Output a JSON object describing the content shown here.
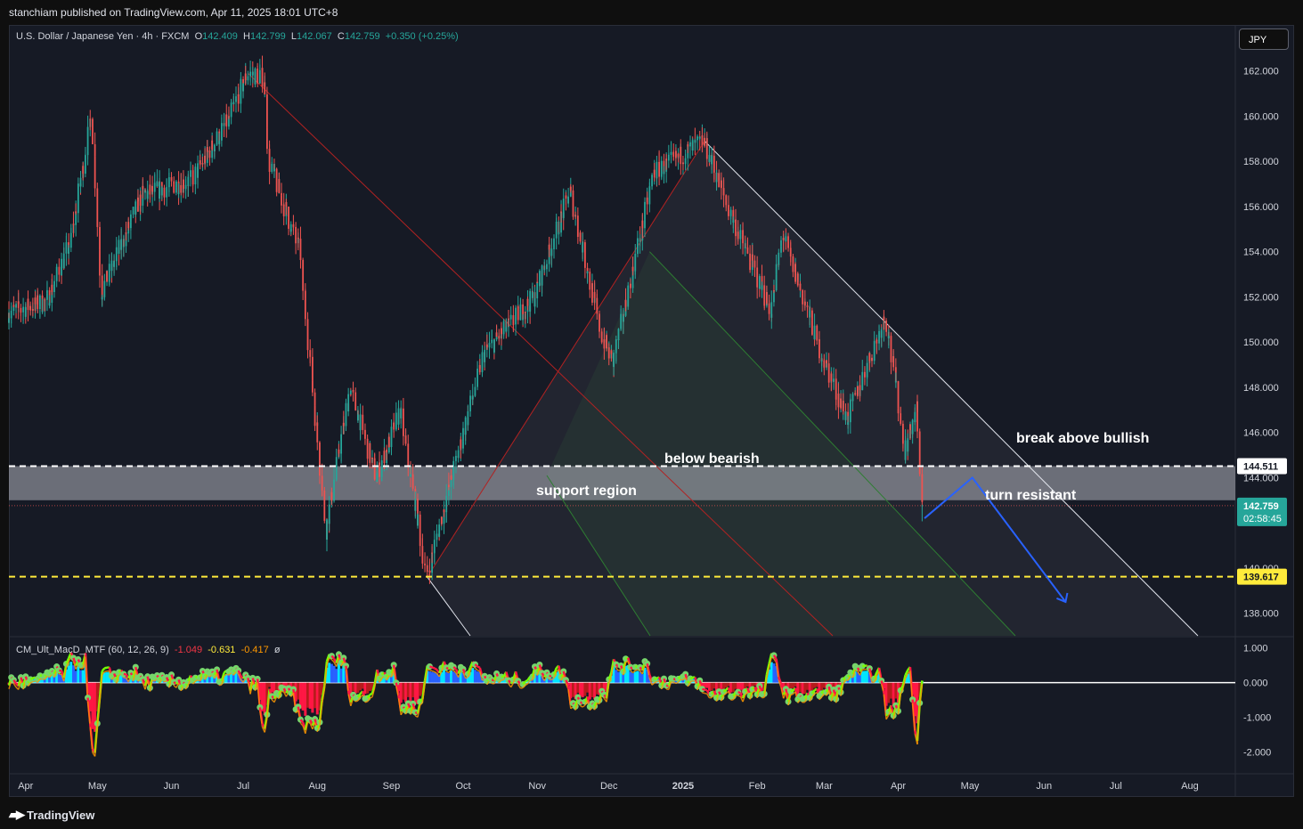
{
  "publisher": "stanchiam published on TradingView.com, Apr 11, 2025 18:01 UTC+8",
  "legend": {
    "symbol": "U.S. Dollar / Japanese Yen · 4h · FXCM",
    "o_label": "O",
    "o": "142.409",
    "h_label": "H",
    "h": "142.799",
    "l_label": "L",
    "l": "142.067",
    "c_label": "C",
    "c": "142.759",
    "change": "+0.350 (+0.25%)"
  },
  "currency_button": "JPY",
  "indicator": {
    "name": "CM_Ult_MacD_MTF (60, 12, 26, 9)",
    "v1": "-1.049",
    "v2": "-0.631",
    "v3": "-0.417",
    "v4": "ø"
  },
  "price_axis": {
    "ticks": [
      "162.000",
      "160.000",
      "158.000",
      "156.000",
      "154.000",
      "152.000",
      "150.000",
      "148.000",
      "146.000",
      "144.000",
      "140.000",
      "138.000"
    ],
    "tags": {
      "resistance": "144.511",
      "last": "142.759",
      "countdown": "02:58:45",
      "support": "139.617"
    }
  },
  "indicator_axis": {
    "ticks": [
      "1.000",
      "0.000",
      "-1.000",
      "-2.000"
    ]
  },
  "time_axis": {
    "labels": [
      "Apr",
      "May",
      "Jun",
      "Jul",
      "Aug",
      "Sep",
      "Oct",
      "Nov",
      "Dec",
      "2025",
      "Feb",
      "Mar",
      "Apr",
      "May",
      "Jun",
      "Jul",
      "Aug"
    ]
  },
  "annotations": {
    "break_above": "break above bullish",
    "below_bearish": "below bearish",
    "support_region": "support region",
    "turn_resistant": "turn resistant"
  },
  "branding": "TradingView",
  "colors": {
    "background": "#161a25",
    "up": "#26a69a",
    "down": "#ef5350",
    "support_line": "#ffeb3b",
    "resistance_line": "#ffffff",
    "projection": "#2962ff",
    "zone": "#5d6068"
  },
  "chart_data": {
    "type": "candlestick",
    "symbol": "USDJPY",
    "timeframe": "4h",
    "ylim": [
      137,
      164
    ],
    "x_range": [
      "2024-03-25",
      "2025-08-20"
    ],
    "close_path": [
      {
        "date": "2024-03-25",
        "value": 151.3
      },
      {
        "date": "2024-04-10",
        "value": 151.8
      },
      {
        "date": "2024-04-20",
        "value": 154.4
      },
      {
        "date": "2024-04-29",
        "value": 160.1
      },
      {
        "date": "2024-05-03",
        "value": 152.2
      },
      {
        "date": "2024-05-20",
        "value": 156.5
      },
      {
        "date": "2024-06-10",
        "value": 157.2
      },
      {
        "date": "2024-06-25",
        "value": 159.8
      },
      {
        "date": "2024-07-03",
        "value": 161.9
      },
      {
        "date": "2024-07-10",
        "value": 161.7
      },
      {
        "date": "2024-07-12",
        "value": 158.0
      },
      {
        "date": "2024-07-25",
        "value": 154.0
      },
      {
        "date": "2024-08-05",
        "value": 141.7
      },
      {
        "date": "2024-08-15",
        "value": 148.0
      },
      {
        "date": "2024-08-26",
        "value": 144.0
      },
      {
        "date": "2024-09-05",
        "value": 147.0
      },
      {
        "date": "2024-09-16",
        "value": 139.6
      },
      {
        "date": "2024-09-27",
        "value": 144.2
      },
      {
        "date": "2024-10-10",
        "value": 149.5
      },
      {
        "date": "2024-10-31",
        "value": 152.0
      },
      {
        "date": "2024-11-15",
        "value": 156.7
      },
      {
        "date": "2024-11-28",
        "value": 150.4
      },
      {
        "date": "2024-12-03",
        "value": 149.1
      },
      {
        "date": "2024-12-20",
        "value": 157.5
      },
      {
        "date": "2025-01-10",
        "value": 158.9
      },
      {
        "date": "2025-01-20",
        "value": 156.0
      },
      {
        "date": "2025-02-07",
        "value": 151.4
      },
      {
        "date": "2025-02-12",
        "value": 154.8
      },
      {
        "date": "2025-02-28",
        "value": 149.5
      },
      {
        "date": "2025-03-11",
        "value": 146.6
      },
      {
        "date": "2025-03-27",
        "value": 151.2
      },
      {
        "date": "2025-04-04",
        "value": 145.2
      },
      {
        "date": "2025-04-09",
        "value": 147.0
      },
      {
        "date": "2025-04-11",
        "value": 142.759
      }
    ],
    "last_bar": {
      "open": 142.409,
      "high": 142.799,
      "low": 142.067,
      "close": 142.759
    },
    "levels": {
      "resistance_dashed_white": 144.511,
      "support_dashed_yellow": 139.617,
      "support_region": [
        143.0,
        144.511
      ]
    },
    "projection": [
      {
        "date": "2025-04-12",
        "value": 142.2
      },
      {
        "date": "2025-05-02",
        "value": 144.0
      },
      {
        "date": "2025-06-10",
        "value": 138.5
      }
    ],
    "indicator": {
      "name": "CM_Ult_MacD_MTF",
      "params": [
        60,
        12,
        26,
        9
      ],
      "ylim": [
        -2.6,
        1.3
      ],
      "values": [
        -1.049,
        -0.631,
        -0.417
      ]
    }
  }
}
